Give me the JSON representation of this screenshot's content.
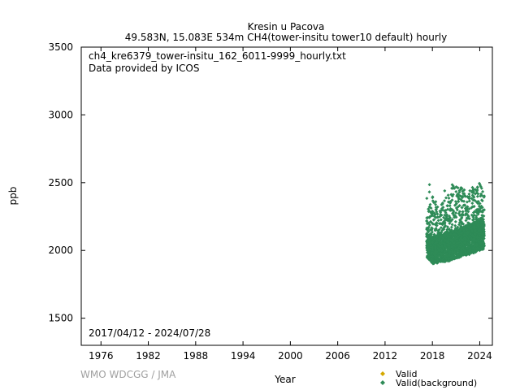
{
  "header": {
    "station": "Kresin u Pacova",
    "subtitle": "49.583N, 15.083E 534m    CH4(tower-insitu tower10 default) hourly"
  },
  "footer": {
    "credit": "WMO WDCGG / JMA"
  },
  "colors": {
    "valid": "#d4a800",
    "background": "#2e8b57",
    "axis": "#000000"
  },
  "chart_data": {
    "type": "scatter",
    "xlabel": "Year",
    "ylabel": "ppb",
    "xlim": [
      1973.5,
      2025.6
    ],
    "ylim": [
      1300,
      3500
    ],
    "xticks": [
      1976,
      1982,
      1988,
      1994,
      2000,
      2006,
      2012,
      2018,
      2024
    ],
    "yticks": [
      1500,
      2000,
      2500,
      3000,
      3500
    ],
    "annotations": {
      "filename": "ch4_kre6379_tower-insitu_162_6011-9999_hourly.txt",
      "provider": "Data provided by ICOS",
      "period": "2017/04/12 - 2024/07/28"
    },
    "legend": {
      "position": "bottom-right",
      "entries": [
        "Valid",
        "Valid(background)"
      ]
    },
    "series": [
      {
        "name": "Valid(background)",
        "x_range": [
          2017.28,
          2024.57
        ],
        "min_envelope": [
          [
            2017.3,
            1950
          ],
          [
            2018.0,
            1900
          ],
          [
            2019.0,
            1910
          ],
          [
            2020.0,
            1920
          ],
          [
            2021.0,
            1940
          ],
          [
            2022.0,
            1960
          ],
          [
            2023.0,
            1975
          ],
          [
            2024.0,
            2000
          ],
          [
            2024.57,
            2010
          ]
        ],
        "max_envelope": [
          [
            2017.3,
            2150
          ],
          [
            2017.6,
            2490
          ],
          [
            2018.0,
            2420
          ],
          [
            2018.5,
            2350
          ],
          [
            2019.0,
            2300
          ],
          [
            2019.5,
            2440
          ],
          [
            2020.0,
            2480
          ],
          [
            2020.5,
            2490
          ],
          [
            2021.0,
            2490
          ],
          [
            2021.5,
            2470
          ],
          [
            2022.0,
            2480
          ],
          [
            2022.5,
            2400
          ],
          [
            2023.0,
            2500
          ],
          [
            2023.5,
            2450
          ],
          [
            2024.0,
            2500
          ],
          [
            2024.57,
            2460
          ]
        ],
        "baseline": [
          [
            2017.3,
            2000
          ],
          [
            2018.0,
            1980
          ],
          [
            2019.0,
            2000
          ],
          [
            2020.0,
            2020
          ],
          [
            2021.0,
            2030
          ],
          [
            2022.0,
            2060
          ],
          [
            2023.0,
            2080
          ],
          [
            2024.0,
            2100
          ],
          [
            2024.57,
            2120
          ]
        ]
      }
    ]
  }
}
